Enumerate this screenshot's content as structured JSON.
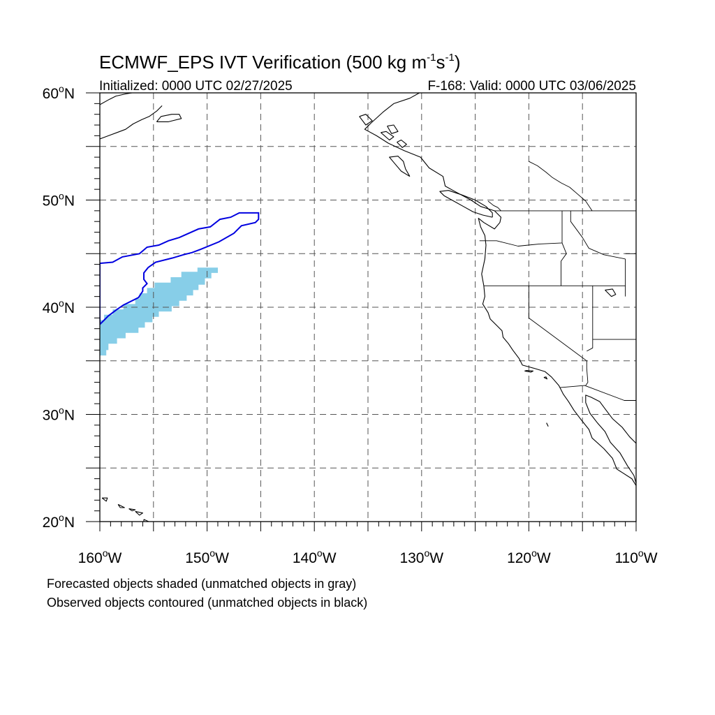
{
  "title": {
    "main": "ECMWF_EPS IVT Verification (500 kg m",
    "sup1": "-1",
    "mid": "s",
    "sup2": "-1",
    "end": ")"
  },
  "subtitle_left": "Initialized: 0000 UTC 02/27/2025",
  "subtitle_right": "F-168: Valid: 0000 UTC 03/06/2025",
  "map": {
    "projection": "cylindrical equidistant",
    "lon_range": [
      -160,
      -110
    ],
    "lat_range": [
      20,
      60
    ],
    "lat_labels": [
      {
        "value": 60,
        "text": "60",
        "hemi": "N"
      },
      {
        "value": 50,
        "text": "50",
        "hemi": "N"
      },
      {
        "value": 40,
        "text": "40",
        "hemi": "N"
      },
      {
        "value": 30,
        "text": "30",
        "hemi": "N"
      },
      {
        "value": 20,
        "text": "20",
        "hemi": "N"
      }
    ],
    "lon_labels": [
      {
        "value": -160,
        "text": "160",
        "hemi": "W"
      },
      {
        "value": -150,
        "text": "150",
        "hemi": "W"
      },
      {
        "value": -140,
        "text": "140",
        "hemi": "W"
      },
      {
        "value": -130,
        "text": "130",
        "hemi": "W"
      },
      {
        "value": -120,
        "text": "120",
        "hemi": "W"
      },
      {
        "value": -110,
        "text": "110",
        "hemi": "W"
      }
    ],
    "gridline_style": "dashed",
    "forecast_object_color": "#87CEE8",
    "observed_contour_color": "#0000E0",
    "forecast_object": [
      [
        -160,
        38.8
      ],
      [
        -159.6,
        38.8
      ],
      [
        -159.6,
        39.3
      ],
      [
        -158.8,
        39.3
      ],
      [
        -158.8,
        39.8
      ],
      [
        -157.8,
        39.8
      ],
      [
        -157.8,
        40.3
      ],
      [
        -156.7,
        40.3
      ],
      [
        -156.7,
        40.8
      ],
      [
        -156.3,
        40.8
      ],
      [
        -156.3,
        41.3
      ],
      [
        -155.6,
        41.3
      ],
      [
        -155.6,
        41.8
      ],
      [
        -154.9,
        41.8
      ],
      [
        -154.9,
        42.3
      ],
      [
        -153.4,
        42.3
      ],
      [
        -153.4,
        42.8
      ],
      [
        -152.4,
        42.8
      ],
      [
        -152.4,
        43.3
      ],
      [
        -150.9,
        43.3
      ],
      [
        -150.9,
        43.7
      ],
      [
        -149.0,
        43.7
      ],
      [
        -149.0,
        43.2
      ],
      [
        -149.6,
        43.2
      ],
      [
        -149.6,
        42.7
      ],
      [
        -150.2,
        42.7
      ],
      [
        -150.2,
        42.1
      ],
      [
        -150.8,
        42.1
      ],
      [
        -150.8,
        41.6
      ],
      [
        -151.3,
        41.6
      ],
      [
        -151.3,
        41.1
      ],
      [
        -151.9,
        41.1
      ],
      [
        -151.9,
        40.6
      ],
      [
        -152.6,
        40.6
      ],
      [
        -152.6,
        40.1
      ],
      [
        -153.3,
        40.1
      ],
      [
        -153.3,
        39.6
      ],
      [
        -154.5,
        39.6
      ],
      [
        -154.5,
        39.1
      ],
      [
        -155.1,
        39.1
      ],
      [
        -155.1,
        38.6
      ],
      [
        -155.8,
        38.6
      ],
      [
        -155.8,
        38.1
      ],
      [
        -156.4,
        38.1
      ],
      [
        -156.4,
        37.6
      ],
      [
        -157.6,
        37.6
      ],
      [
        -157.6,
        37.1
      ],
      [
        -158.4,
        37.1
      ],
      [
        -158.4,
        36.6
      ],
      [
        -159.2,
        36.6
      ],
      [
        -159.2,
        36.0
      ],
      [
        -159.4,
        36.0
      ],
      [
        -159.4,
        35.5
      ],
      [
        -160,
        35.5
      ]
    ],
    "observed_contour": [
      [
        -160,
        38.4
      ],
      [
        -160,
        44.1
      ],
      [
        -158.8,
        44.2
      ],
      [
        -157.9,
        44.7
      ],
      [
        -156.3,
        45.0
      ],
      [
        -155.6,
        45.6
      ],
      [
        -154.5,
        45.8
      ],
      [
        -153.6,
        46.2
      ],
      [
        -152.6,
        46.5
      ],
      [
        -150.8,
        47.3
      ],
      [
        -149.7,
        47.5
      ],
      [
        -148.8,
        48.2
      ],
      [
        -147.8,
        48.4
      ],
      [
        -147.0,
        48.8
      ],
      [
        -145.2,
        48.8
      ],
      [
        -145.2,
        48.2
      ],
      [
        -145.5,
        47.9
      ],
      [
        -146.8,
        47.6
      ],
      [
        -147.5,
        46.9
      ],
      [
        -148.9,
        46.1
      ],
      [
        -150.6,
        45.4
      ],
      [
        -151.4,
        45.1
      ],
      [
        -152.2,
        44.9
      ],
      [
        -153.2,
        44.6
      ],
      [
        -154.8,
        44.2
      ],
      [
        -155.5,
        43.7
      ],
      [
        -155.9,
        43.2
      ],
      [
        -155.9,
        42.6
      ],
      [
        -155.6,
        42.2
      ],
      [
        -156.0,
        41.8
      ],
      [
        -156.0,
        41.5
      ],
      [
        -156.4,
        40.9
      ],
      [
        -157.8,
        40.2
      ],
      [
        -158.4,
        39.8
      ],
      [
        -159.2,
        39.2
      ],
      [
        -159.7,
        38.7
      ],
      [
        -160,
        38.4
      ]
    ],
    "coast_na": [
      [
        -130.2,
        60.0
      ],
      [
        -131.1,
        59.5
      ],
      [
        -132.6,
        59.0
      ],
      [
        -133.6,
        58.2
      ],
      [
        -134.7,
        57.2
      ],
      [
        -135.3,
        56.6
      ],
      [
        -134.2,
        56.0
      ],
      [
        -133.1,
        55.3
      ],
      [
        -131.6,
        54.6
      ],
      [
        -130.1,
        54.0
      ],
      [
        -129.3,
        53.0
      ],
      [
        -128.0,
        52.2
      ],
      [
        -127.8,
        51.3
      ],
      [
        -126.9,
        50.8
      ],
      [
        -125.4,
        50.0
      ],
      [
        -124.5,
        49.4
      ],
      [
        -123.2,
        49.0
      ],
      [
        -122.6,
        48.4
      ],
      [
        -122.7,
        47.9
      ],
      [
        -123.2,
        47.3
      ],
      [
        -124.2,
        47.9
      ],
      [
        -124.7,
        48.3
      ],
      [
        -124.5,
        47.5
      ],
      [
        -124.1,
        46.7
      ],
      [
        -124.0,
        45.8
      ],
      [
        -124.1,
        44.5
      ],
      [
        -124.4,
        43.1
      ],
      [
        -124.2,
        42.0
      ],
      [
        -124.1,
        41.0
      ],
      [
        -124.3,
        40.3
      ],
      [
        -123.8,
        39.5
      ],
      [
        -123.6,
        38.9
      ],
      [
        -122.9,
        38.2
      ],
      [
        -122.5,
        37.8
      ],
      [
        -122.4,
        37.2
      ],
      [
        -121.9,
        36.6
      ],
      [
        -121.5,
        36.0
      ],
      [
        -120.9,
        35.2
      ],
      [
        -120.6,
        34.6
      ],
      [
        -119.5,
        34.3
      ],
      [
        -118.5,
        34.0
      ],
      [
        -117.9,
        33.5
      ],
      [
        -117.2,
        32.7
      ],
      [
        -116.8,
        31.9
      ],
      [
        -116.3,
        31.2
      ],
      [
        -115.8,
        30.4
      ],
      [
        -115.2,
        29.6
      ],
      [
        -114.4,
        28.6
      ],
      [
        -114.1,
        27.8
      ],
      [
        -113.0,
        26.8
      ],
      [
        -112.2,
        25.9
      ],
      [
        -111.8,
        24.9
      ],
      [
        -110.4,
        24.0
      ],
      [
        -109.9,
        23.2
      ]
    ],
    "coast_gulf": [
      [
        -110.0,
        27.3
      ],
      [
        -110.6,
        27.9
      ],
      [
        -111.3,
        28.8
      ],
      [
        -112.2,
        29.6
      ],
      [
        -112.8,
        30.4
      ],
      [
        -113.4,
        31.2
      ],
      [
        -114.2,
        31.6
      ],
      [
        -114.7,
        31.8
      ],
      [
        -114.7,
        31.1
      ],
      [
        -114.3,
        30.1
      ],
      [
        -113.6,
        29.2
      ],
      [
        -112.9,
        28.4
      ],
      [
        -112.4,
        27.4
      ],
      [
        -111.5,
        26.4
      ],
      [
        -110.8,
        25.2
      ],
      [
        -110.2,
        24.3
      ],
      [
        -109.9,
        23.2
      ]
    ],
    "vancouver_island": [
      [
        -123.4,
        48.4
      ],
      [
        -124.3,
        48.6
      ],
      [
        -125.2,
        48.9
      ],
      [
        -126.1,
        49.4
      ],
      [
        -127.0,
        49.9
      ],
      [
        -127.9,
        50.4
      ],
      [
        -128.3,
        50.8
      ],
      [
        -127.5,
        50.9
      ],
      [
        -126.3,
        50.5
      ],
      [
        -125.0,
        50.0
      ],
      [
        -124.0,
        49.4
      ],
      [
        -123.4,
        48.8
      ],
      [
        -123.4,
        48.4
      ]
    ],
    "haida_gwaii": [
      [
        -131.1,
        52.2
      ],
      [
        -131.9,
        52.7
      ],
      [
        -132.5,
        53.4
      ],
      [
        -133.0,
        54.0
      ],
      [
        -132.2,
        54.1
      ],
      [
        -131.7,
        53.6
      ],
      [
        -131.5,
        52.9
      ],
      [
        -131.1,
        52.2
      ]
    ],
    "alaska_coast": [
      [
        -160,
        58.9
      ],
      [
        -159.1,
        59.4
      ],
      [
        -158.5,
        59.7
      ],
      [
        -157.6,
        59.9
      ],
      [
        -157.0,
        60.0
      ]
    ],
    "alaska_pen": [
      [
        -160,
        55.7
      ],
      [
        -159.2,
        56.0
      ],
      [
        -158.4,
        56.3
      ],
      [
        -157.6,
        56.6
      ],
      [
        -156.9,
        57.1
      ],
      [
        -156.1,
        57.5
      ],
      [
        -155.4,
        57.8
      ],
      [
        -154.7,
        58.3
      ],
      [
        -154.2,
        58.8
      ]
    ],
    "kodiak": [
      [
        -154.7,
        57.3
      ],
      [
        -153.6,
        57.3
      ],
      [
        -152.4,
        57.6
      ],
      [
        -152.6,
        58.0
      ],
      [
        -153.3,
        58.0
      ],
      [
        -154.3,
        57.8
      ],
      [
        -154.7,
        57.3
      ]
    ],
    "se_ak_islands": [
      [
        [
          -133.2,
          56.9
        ],
        [
          -132.8,
          56.2
        ],
        [
          -132.2,
          56.4
        ],
        [
          -132.6,
          57.0
        ],
        [
          -133.2,
          56.9
        ]
      ],
      [
        [
          -135.8,
          57.8
        ],
        [
          -135.2,
          57.0
        ],
        [
          -134.6,
          57.4
        ],
        [
          -135.2,
          58.0
        ],
        [
          -135.8,
          57.8
        ]
      ],
      [
        [
          -133.8,
          56.3
        ],
        [
          -133.0,
          55.6
        ],
        [
          -132.6,
          55.9
        ],
        [
          -133.3,
          56.4
        ],
        [
          -133.8,
          56.3
        ]
      ],
      [
        [
          -132.3,
          55.4
        ],
        [
          -131.8,
          54.9
        ],
        [
          -131.4,
          55.2
        ],
        [
          -131.9,
          55.6
        ],
        [
          -132.3,
          55.4
        ]
      ]
    ],
    "channel_islands": [
      [
        [
          -120.4,
          34.05
        ],
        [
          -119.8,
          33.95
        ],
        [
          -119.6,
          34.05
        ],
        [
          -120.2,
          34.1
        ],
        [
          -120.4,
          34.05
        ]
      ],
      [
        [
          -118.6,
          33.45
        ],
        [
          -118.3,
          33.3
        ],
        [
          -118.4,
          33.5
        ],
        [
          -118.6,
          33.45
        ]
      ]
    ],
    "guadalupe": [
      [
        -118.35,
        29.2
      ],
      [
        -118.2,
        28.9
      ],
      [
        -118.3,
        29.1
      ],
      [
        -118.35,
        29.2
      ]
    ],
    "hawaii": [
      [
        [
          -159.8,
          22.2
        ],
        [
          -159.3,
          22.2
        ],
        [
          -159.4,
          21.9
        ],
        [
          -159.8,
          22.2
        ]
      ],
      [
        [
          -158.3,
          21.6
        ],
        [
          -157.7,
          21.3
        ],
        [
          -158.1,
          21.3
        ],
        [
          -158.3,
          21.6
        ]
      ],
      [
        [
          -157.3,
          21.2
        ],
        [
          -156.7,
          21.1
        ],
        [
          -157.0,
          21.0
        ],
        [
          -157.3,
          21.2
        ]
      ],
      [
        [
          -156.7,
          20.95
        ],
        [
          -156.0,
          20.8
        ],
        [
          -156.3,
          20.6
        ],
        [
          -156.7,
          20.95
        ]
      ],
      [
        [
          -155.9,
          20.2
        ],
        [
          -155.0,
          19.8
        ],
        [
          -155.6,
          18.95
        ],
        [
          -155.9,
          19.5
        ],
        [
          -155.9,
          20.2
        ]
      ]
    ],
    "great_salt_lake": [
      [
        -112.9,
        41.6
      ],
      [
        -112.2,
        41.7
      ],
      [
        -111.9,
        41.2
      ],
      [
        -112.3,
        41.0
      ],
      [
        -112.6,
        41.3
      ],
      [
        -112.9,
        41.6
      ]
    ],
    "flathead_lake": [
      [
        -114.1,
        58.0
      ],
      [
        -113.8,
        58.0
      ]
    ],
    "borders": [
      [
        [
          -123.2,
          49.0
        ],
        [
          -110,
          49.0
        ]
      ],
      [
        [
          -124.6,
          46.2
        ],
        [
          -123.0,
          46.2
        ],
        [
          -121.0,
          45.7
        ],
        [
          -119.0,
          45.9
        ],
        [
          -116.9,
          46.0
        ],
        [
          -116.9,
          49.0
        ]
      ],
      [
        [
          -124.2,
          42.0
        ],
        [
          -117.0,
          42.0
        ],
        [
          -111.0,
          42.0
        ]
      ],
      [
        [
          -117.0,
          42.0
        ],
        [
          -117.0,
          44.3
        ],
        [
          -116.5,
          45.0
        ],
        [
          -116.9,
          46.0
        ]
      ],
      [
        [
          -116.1,
          49.0
        ],
        [
          -116.1,
          48.0
        ],
        [
          -115.0,
          46.5
        ],
        [
          -114.4,
          45.5
        ],
        [
          -113.0,
          44.9
        ],
        [
          -111.0,
          44.5
        ]
      ],
      [
        [
          -120.0,
          42.0
        ],
        [
          -120.0,
          39.0
        ],
        [
          -114.6,
          35.0
        ],
        [
          -114.6,
          34.3
        ],
        [
          -114.5,
          33.0
        ],
        [
          -114.7,
          32.7
        ]
      ],
      [
        [
          -114.05,
          42.0
        ],
        [
          -114.05,
          37.0
        ],
        [
          -114.05,
          36.2
        ],
        [
          -114.6,
          35.9
        ]
      ],
      [
        [
          -114.05,
          37.0
        ],
        [
          -110,
          37.0
        ]
      ],
      [
        [
          -117.1,
          32.5
        ],
        [
          -114.8,
          32.7
        ],
        [
          -111.1,
          31.3
        ],
        [
          -110,
          31.3
        ]
      ],
      [
        [
          -111.0,
          44.5
        ],
        [
          -111.0,
          41.0
        ]
      ],
      [
        [
          -111.0,
          45.0
        ],
        [
          -110,
          45.0
        ]
      ]
    ],
    "canada_inland": [
      [
        [
          -120.0,
          53.6
        ],
        [
          -119.2,
          53.2
        ],
        [
          -118.4,
          52.6
        ],
        [
          -117.8,
          52.1
        ],
        [
          -117.0,
          51.6
        ],
        [
          -116.2,
          51.2
        ],
        [
          -115.5,
          50.6
        ],
        [
          -114.7,
          49.9
        ],
        [
          -114.1,
          49.0
        ]
      ],
      [
        [
          -123.8,
          49.9
        ],
        [
          -123.3,
          49.5
        ],
        [
          -122.9,
          49.3
        ],
        [
          -122.6,
          49.0
        ]
      ]
    ]
  }
}
